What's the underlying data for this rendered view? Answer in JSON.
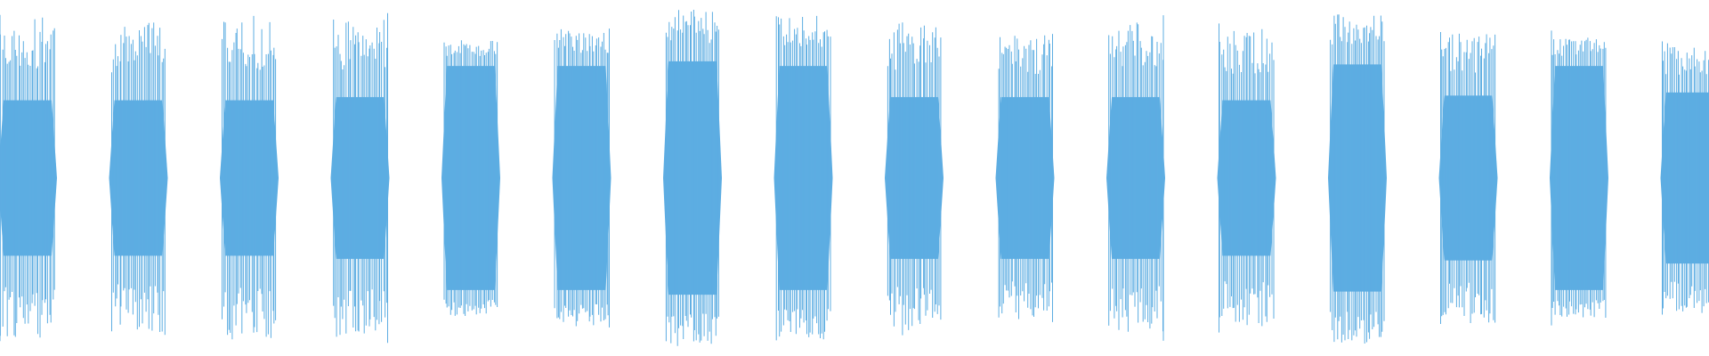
{
  "waveform": {
    "color": "#5dade2",
    "background": "#ffffff",
    "burst_count": 16,
    "last_burst_clipped": true,
    "bursts": [
      {
        "index": 1,
        "core_level": 0.5,
        "peak_level": 0.95
      },
      {
        "index": 2,
        "core_level": 0.5,
        "peak_level": 0.93
      },
      {
        "index": 3,
        "core_level": 0.5,
        "peak_level": 0.96
      },
      {
        "index": 4,
        "core_level": 0.52,
        "peak_level": 0.94
      },
      {
        "index": 5,
        "core_level": 0.72,
        "peak_level": 0.82
      },
      {
        "index": 6,
        "core_level": 0.72,
        "peak_level": 0.88
      },
      {
        "index": 7,
        "core_level": 0.75,
        "peak_level": 1.0
      },
      {
        "index": 8,
        "core_level": 0.72,
        "peak_level": 0.96
      },
      {
        "index": 9,
        "core_level": 0.52,
        "peak_level": 0.93
      },
      {
        "index": 10,
        "core_level": 0.52,
        "peak_level": 0.85
      },
      {
        "index": 11,
        "core_level": 0.52,
        "peak_level": 0.92
      },
      {
        "index": 12,
        "core_level": 0.5,
        "peak_level": 0.88
      },
      {
        "index": 13,
        "core_level": 0.73,
        "peak_level": 0.98
      },
      {
        "index": 14,
        "core_level": 0.53,
        "peak_level": 0.86
      },
      {
        "index": 15,
        "core_level": 0.72,
        "peak_level": 0.83
      },
      {
        "index": 16,
        "core_level": 0.55,
        "peak_level": 0.8
      }
    ]
  }
}
